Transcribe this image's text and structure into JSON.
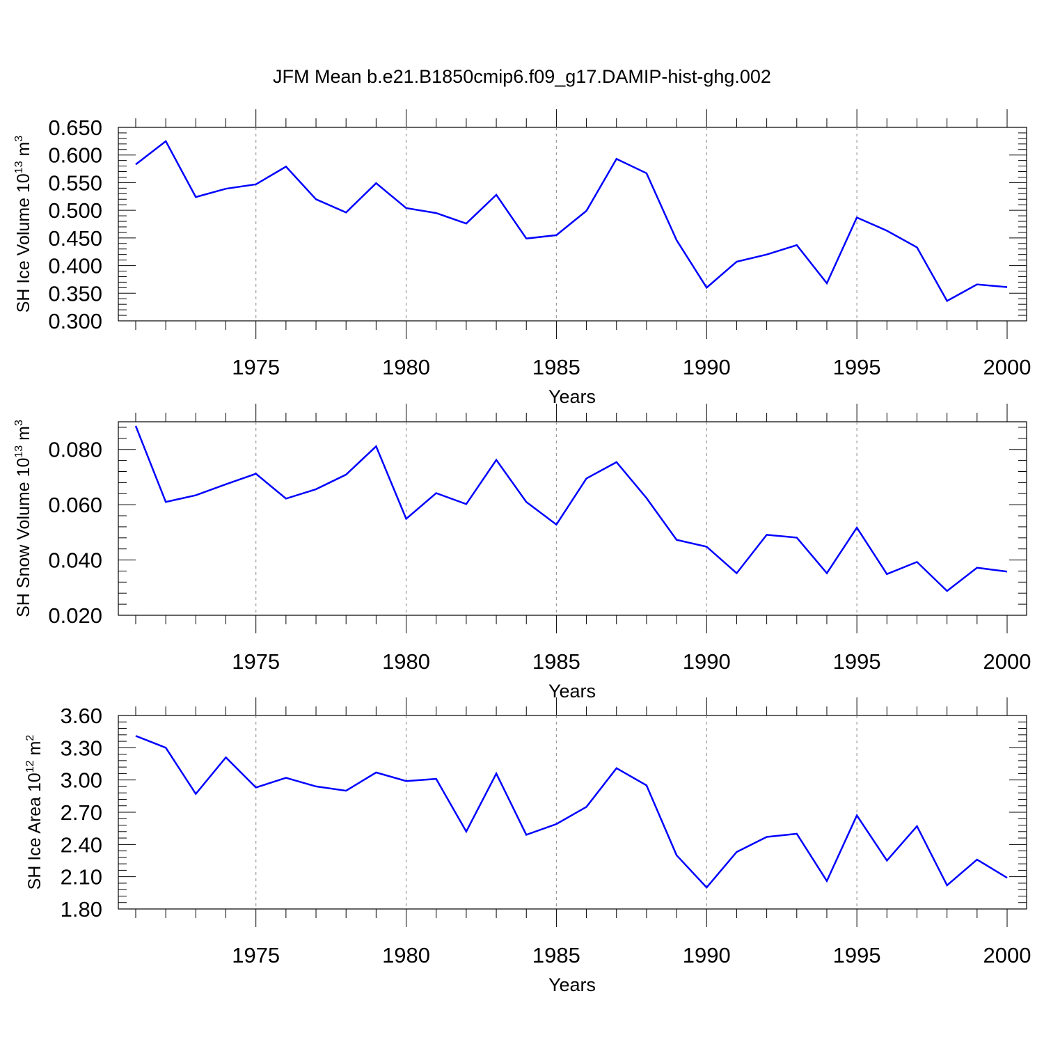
{
  "figure": {
    "title": "JFM Mean b.e21.B1850cmip6.f09_g17.DAMIP-hist-ghg.002",
    "line_color": "#0000ff",
    "grid_color": "#999999",
    "axis_color": "#000000"
  },
  "chart_data": [
    {
      "type": "line",
      "title": "",
      "xlabel": "Years",
      "ylabel": {
        "text": "SH Ice Volume 10",
        "exponent": "13",
        "unit": "m",
        "unit_exponent": "3"
      },
      "xlim": [
        1971,
        2000
      ],
      "ylim": [
        0.3,
        0.65
      ],
      "x_ticks": [
        1975,
        1980,
        1985,
        1990,
        1995,
        2000
      ],
      "y_ticks": [
        "0.300",
        "0.350",
        "0.400",
        "0.450",
        "0.500",
        "0.550",
        "0.600",
        "0.650"
      ],
      "grid": "vertical dashed at major x ticks",
      "x": [
        1971,
        1972,
        1973,
        1974,
        1975,
        1976,
        1977,
        1978,
        1979,
        1980,
        1981,
        1982,
        1983,
        1984,
        1985,
        1986,
        1987,
        1988,
        1989,
        1990,
        1991,
        1992,
        1993,
        1994,
        1995,
        1996,
        1997,
        1998,
        1999,
        2000
      ],
      "series": [
        {
          "values": [
            0.583,
            0.625,
            0.524,
            0.539,
            0.547,
            0.579,
            0.52,
            0.496,
            0.549,
            0.504,
            0.495,
            0.476,
            0.528,
            0.449,
            0.455,
            0.499,
            0.593,
            0.567,
            0.446,
            0.36,
            0.407,
            0.42,
            0.437,
            0.368,
            0.487,
            0.463,
            0.433,
            0.336,
            0.366,
            0.361
          ]
        }
      ]
    },
    {
      "type": "line",
      "title": "",
      "xlabel": "Years",
      "ylabel": {
        "text": "SH Snow Volume 10",
        "exponent": "13",
        "unit": "m",
        "unit_exponent": "3"
      },
      "xlim": [
        1971,
        2000
      ],
      "ylim": [
        0.02,
        0.09
      ],
      "x_ticks": [
        1975,
        1980,
        1985,
        1990,
        1995,
        2000
      ],
      "y_ticks": [
        "0.020",
        "0.040",
        "0.060",
        "0.080"
      ],
      "grid": "vertical dashed at major x ticks",
      "x": [
        1971,
        1972,
        1973,
        1974,
        1975,
        1976,
        1977,
        1978,
        1979,
        1980,
        1981,
        1982,
        1983,
        1984,
        1985,
        1986,
        1987,
        1988,
        1989,
        1990,
        1991,
        1992,
        1993,
        1994,
        1995,
        1996,
        1997,
        1998,
        1999,
        2000
      ],
      "series": [
        {
          "values": [
            0.0885,
            0.061,
            0.0634,
            0.0674,
            0.0712,
            0.0622,
            0.0656,
            0.0709,
            0.0811,
            0.0549,
            0.0642,
            0.0602,
            0.0762,
            0.061,
            0.0528,
            0.0695,
            0.0754,
            0.0624,
            0.0473,
            0.0448,
            0.0352,
            0.0491,
            0.0481,
            0.0352,
            0.0517,
            0.0349,
            0.0393,
            0.0288,
            0.0372,
            0.0358
          ]
        }
      ]
    },
    {
      "type": "line",
      "title": "",
      "xlabel": "Years",
      "ylabel": {
        "text": "SH Ice Area 10",
        "exponent": "12",
        "unit": "m",
        "unit_exponent": "2"
      },
      "xlim": [
        1971,
        2000
      ],
      "ylim": [
        1.8,
        3.6
      ],
      "x_ticks": [
        1975,
        1980,
        1985,
        1990,
        1995,
        2000
      ],
      "y_ticks": [
        "1.80",
        "2.10",
        "2.40",
        "2.70",
        "3.00",
        "3.30",
        "3.60"
      ],
      "grid": "vertical dashed at major x ticks",
      "x": [
        1971,
        1972,
        1973,
        1974,
        1975,
        1976,
        1977,
        1978,
        1979,
        1980,
        1981,
        1982,
        1983,
        1984,
        1985,
        1986,
        1987,
        1988,
        1989,
        1990,
        1991,
        1992,
        1993,
        1994,
        1995,
        1996,
        1997,
        1998,
        1999,
        2000
      ],
      "series": [
        {
          "values": [
            3.41,
            3.3,
            2.87,
            3.21,
            2.93,
            3.02,
            2.94,
            2.9,
            3.07,
            2.99,
            3.01,
            2.52,
            3.06,
            2.49,
            2.59,
            2.75,
            3.11,
            2.95,
            2.3,
            2.0,
            2.33,
            2.47,
            2.5,
            2.06,
            2.67,
            2.25,
            2.57,
            2.02,
            2.26,
            2.09
          ]
        }
      ]
    }
  ]
}
